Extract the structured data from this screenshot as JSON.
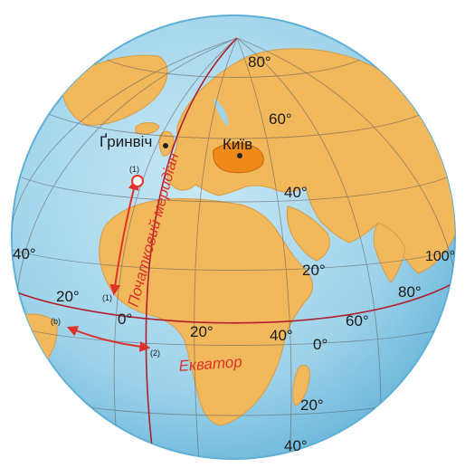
{
  "map": {
    "colors": {
      "ocean": "#9fd3ea",
      "ocean_edge": "#5fb0d6",
      "land": "#f2b85c",
      "land_edge": "#d99c44",
      "grid": "#5b5b5b",
      "meridian_equator": "#b01f2c",
      "arrow": "#e0312a",
      "ukraine": "#ef8a1a",
      "point": "#222222"
    },
    "places": {
      "greenwich": "Ґринвіч",
      "kyiv": "Київ"
    },
    "lines": {
      "prime_meridian": "Початковий меридіан",
      "equator": "Екватор"
    },
    "latitude_labels": {
      "lat80": "80",
      "lat60": "60",
      "lat40n": "40",
      "lat20n": "20",
      "lat0": "0",
      "lat20s": "20",
      "lat40s": "40"
    },
    "longitude_labels": {
      "lon40w": "40",
      "lon20w": "20",
      "lon0": "0",
      "lon20e": "20",
      "lon40e": "40",
      "lon60e": "60",
      "lon80e": "80",
      "lon100e": "100"
    },
    "point_markers": {
      "lat_arrow_top": "(1)",
      "lat_arrow_bottom": "(1)",
      "lon_arrow_left": "(b)",
      "lon_arrow_right": "(2)"
    },
    "degree_sign": "°"
  }
}
